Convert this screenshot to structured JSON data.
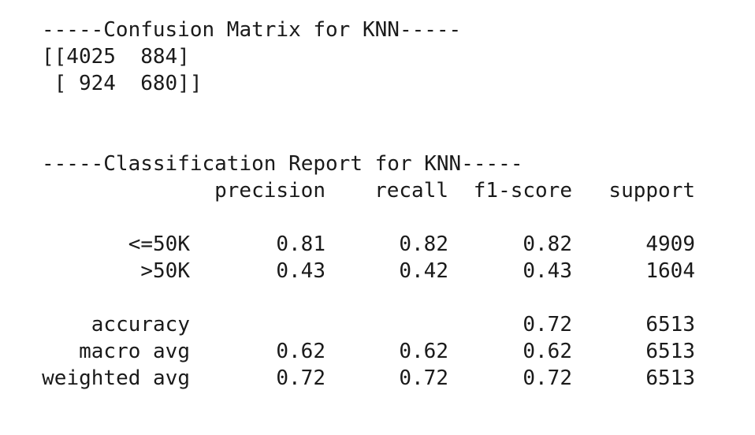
{
  "confusion": {
    "header": "-----Confusion Matrix for KNN-----",
    "rows": [
      "[[4025  884]",
      " [ 924  680]]"
    ]
  },
  "report": {
    "header": "-----Classification Report for KNN-----",
    "columns": [
      "precision",
      "recall",
      "f1-score",
      "support"
    ],
    "class_rows": [
      {
        "label": "<=50K",
        "precision": "0.81",
        "recall": "0.82",
        "f1": "0.82",
        "support": "4909"
      },
      {
        "label": ">50K",
        "precision": "0.43",
        "recall": "0.42",
        "f1": "0.43",
        "support": "1604"
      }
    ],
    "summary_rows": [
      {
        "label": "accuracy",
        "precision": "",
        "recall": "",
        "f1": "0.72",
        "support": "6513"
      },
      {
        "label": "macro avg",
        "precision": "0.62",
        "recall": "0.62",
        "f1": "0.62",
        "support": "6513"
      },
      {
        "label": "weighted avg",
        "precision": "0.72",
        "recall": "0.72",
        "f1": "0.72",
        "support": "6513"
      }
    ]
  }
}
